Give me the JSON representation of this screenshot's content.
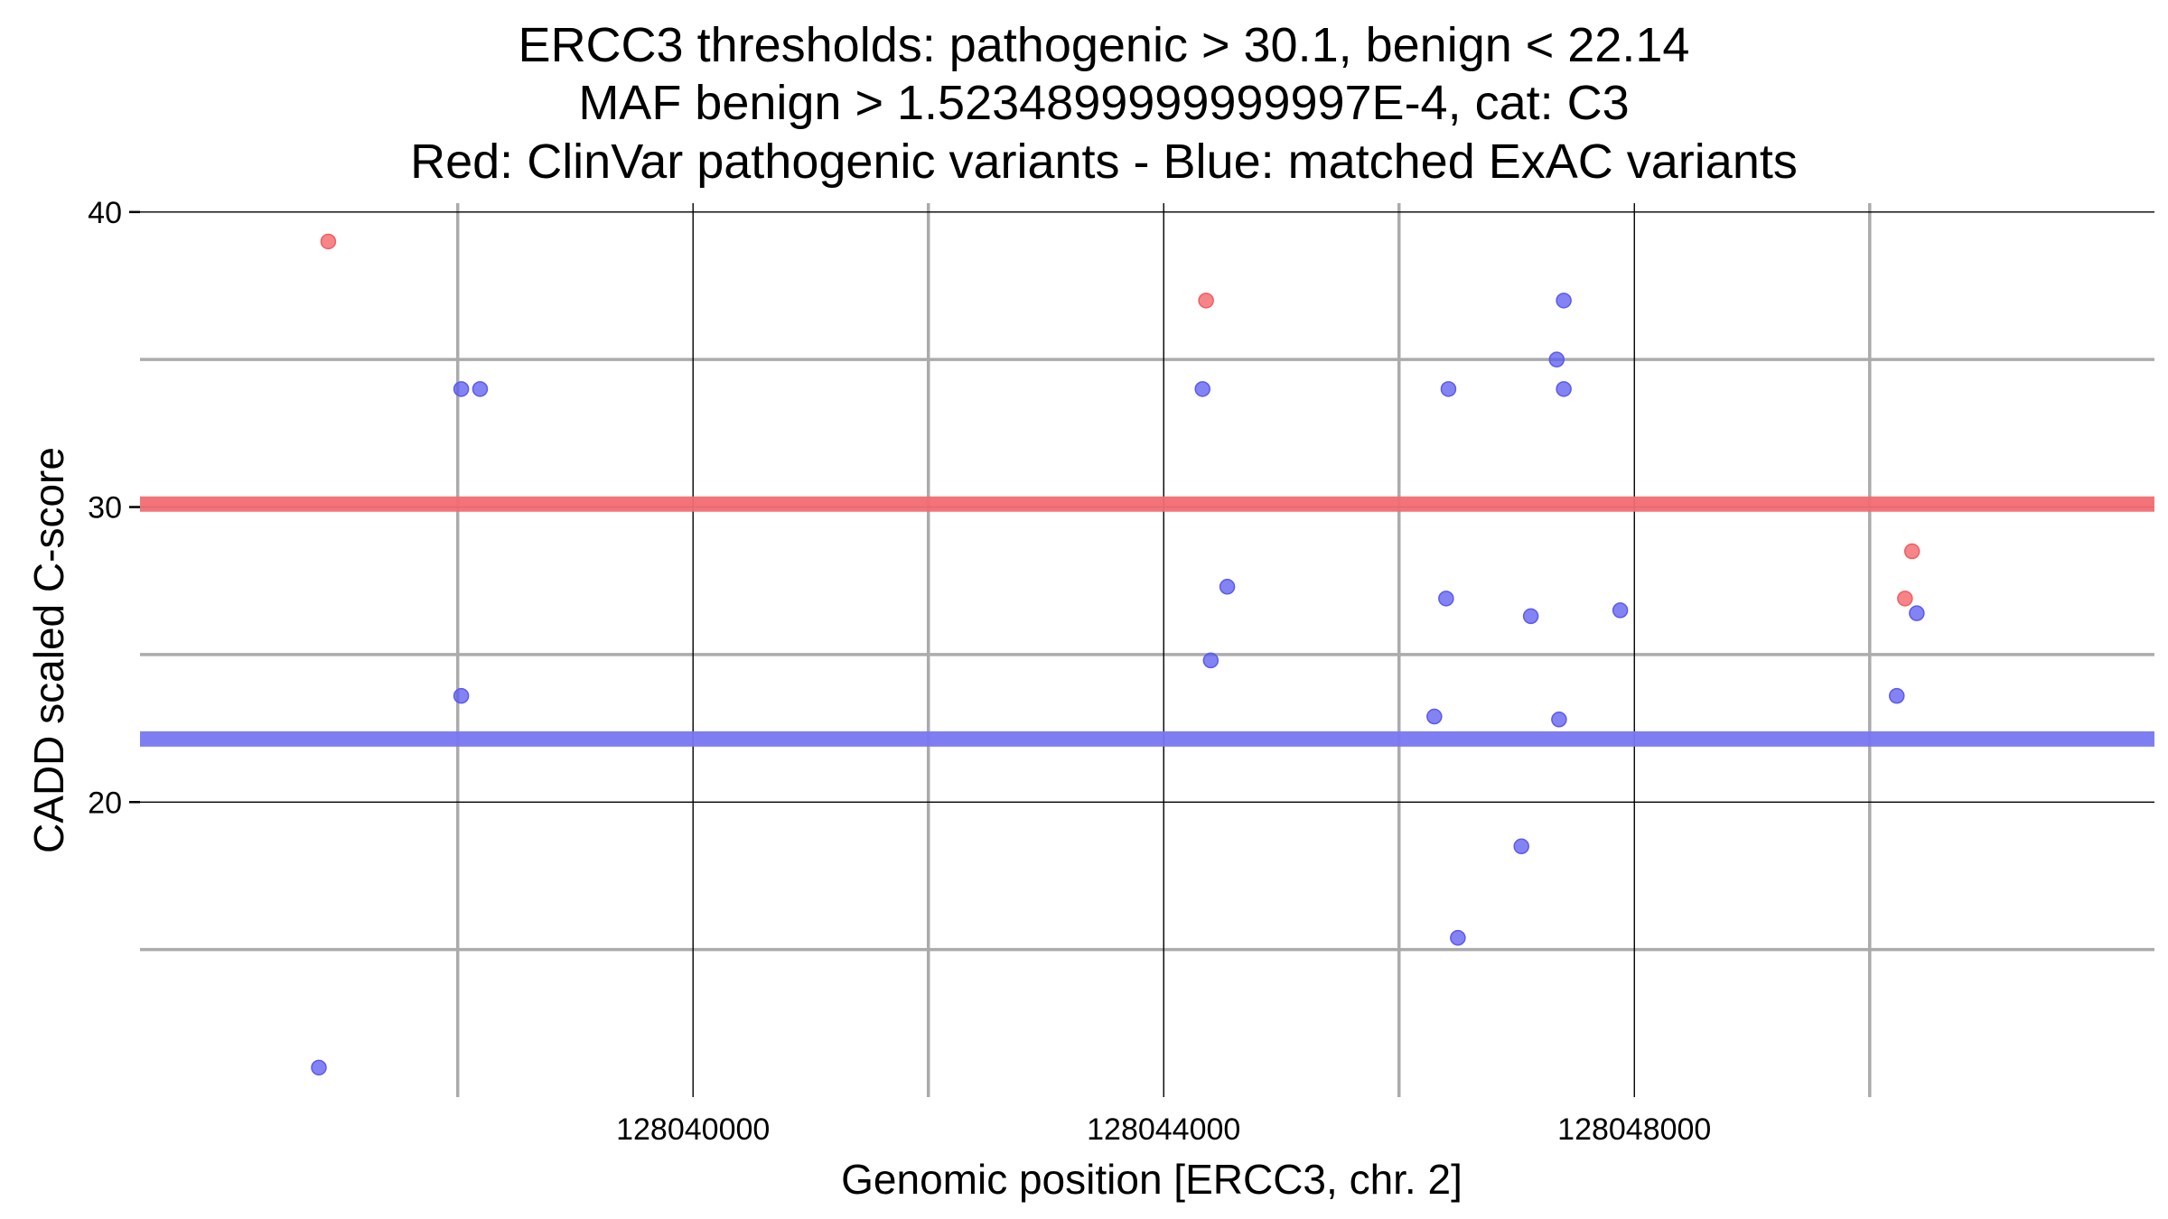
{
  "chart_data": {
    "type": "scatter",
    "title_lines": [
      "ERCC3 thresholds: pathogenic > 30.1, benign < 22.14",
      "MAF benign > 1.5234899999999997E-4, cat: C3",
      "Red: ClinVar pathogenic variants - Blue: matched ExAC variants"
    ],
    "xlabel": "Genomic position [ERCC3, chr. 2]",
    "ylabel": "CADD scaled C-score",
    "xlim": [
      128035300,
      128052420
    ],
    "ylim": [
      10,
      40.3
    ],
    "x_ticks": [
      128040000,
      128044000,
      128048000
    ],
    "x_tick_labels": [
      "128040000",
      "128044000",
      "128048000"
    ],
    "x_minor_grid": [
      128038000,
      128042000,
      128046000,
      128050000
    ],
    "y_ticks": [
      20,
      30,
      40
    ],
    "y_tick_labels": [
      "20",
      "30",
      "40"
    ],
    "y_minor_grid": [
      15,
      25,
      35
    ],
    "grid": true,
    "thresholds": {
      "pathogenic": 30.1,
      "benign": 22.14,
      "pathogenic_color": "#f26d72",
      "benign_color": "#7878f2"
    },
    "series": [
      {
        "color": "#f25c61",
        "points": [
          {
            "x": 128036900,
            "y": 39.0
          },
          {
            "x": 128044360,
            "y": 37.0
          },
          {
            "x": 128050300,
            "y": 26.9
          },
          {
            "x": 128050360,
            "y": 28.5
          }
        ]
      },
      {
        "color": "#5a5af0",
        "points": [
          {
            "x": 128036820,
            "y": 11.0
          },
          {
            "x": 128038030,
            "y": 34.0
          },
          {
            "x": 128038030,
            "y": 23.6
          },
          {
            "x": 128038190,
            "y": 34.0
          },
          {
            "x": 128044330,
            "y": 34.0
          },
          {
            "x": 128044400,
            "y": 24.8
          },
          {
            "x": 128044540,
            "y": 27.3
          },
          {
            "x": 128046300,
            "y": 22.9
          },
          {
            "x": 128046400,
            "y": 26.9
          },
          {
            "x": 128046420,
            "y": 34.0
          },
          {
            "x": 128046500,
            "y": 15.4
          },
          {
            "x": 128047040,
            "y": 18.5
          },
          {
            "x": 128047120,
            "y": 26.3
          },
          {
            "x": 128047340,
            "y": 35.0
          },
          {
            "x": 128047360,
            "y": 22.8
          },
          {
            "x": 128047400,
            "y": 37.0
          },
          {
            "x": 128047400,
            "y": 34.0
          },
          {
            "x": 128047880,
            "y": 26.5
          },
          {
            "x": 128050230,
            "y": 23.6
          },
          {
            "x": 128050400,
            "y": 26.4
          }
        ]
      }
    ]
  }
}
